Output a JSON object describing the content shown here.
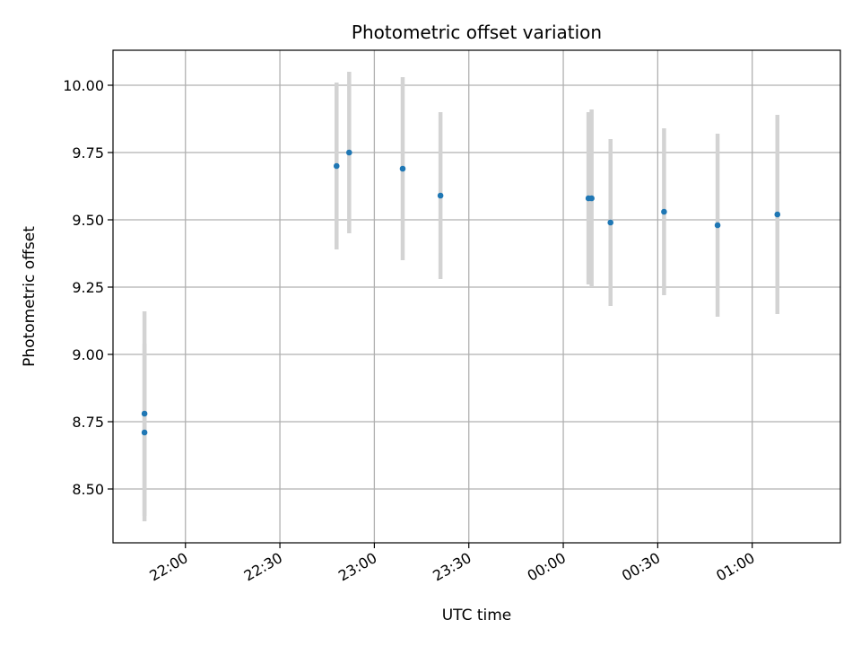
{
  "chart_data": {
    "type": "scatter",
    "title": "Photometric offset variation",
    "xlabel": "UTC time",
    "ylabel": "Photometric offset",
    "x_axis_kind": "time",
    "xlim": [
      "21:37",
      "01:28"
    ],
    "ylim": [
      8.3,
      10.13
    ],
    "grid": true,
    "x_ticks": [
      {
        "t": "22:00",
        "label": "22:00"
      },
      {
        "t": "22:30",
        "label": "22:30"
      },
      {
        "t": "23:00",
        "label": "23:00"
      },
      {
        "t": "23:30",
        "label": "23:30"
      },
      {
        "t": "00:00",
        "label": "00:00"
      },
      {
        "t": "00:30",
        "label": "00:30"
      },
      {
        "t": "01:00",
        "label": "01:00"
      }
    ],
    "y_ticks": [
      {
        "v": 8.5,
        "label": "8.50"
      },
      {
        "v": 8.75,
        "label": "8.75"
      },
      {
        "v": 9.0,
        "label": "9.00"
      },
      {
        "v": 9.25,
        "label": "9.25"
      },
      {
        "v": 9.5,
        "label": "9.50"
      },
      {
        "v": 9.75,
        "label": "9.75"
      },
      {
        "v": 10.0,
        "label": "10.00"
      }
    ],
    "colors": {
      "point": "#1f77b4",
      "errorbar": "#d3d3d3",
      "grid": "#b0b0b0"
    },
    "points": [
      {
        "x": "21:47",
        "y": 8.78,
        "yerr": 0.38
      },
      {
        "x": "21:47",
        "y": 8.71,
        "yerr": 0.33
      },
      {
        "x": "22:48",
        "y": 9.7,
        "yerr": 0.31
      },
      {
        "x": "22:52",
        "y": 9.75,
        "yerr": 0.3
      },
      {
        "x": "23:09",
        "y": 9.69,
        "yerr": 0.34
      },
      {
        "x": "23:21",
        "y": 9.59,
        "yerr": 0.31
      },
      {
        "x": "00:08",
        "y": 9.58,
        "yerr": 0.32
      },
      {
        "x": "00:09",
        "y": 9.58,
        "yerr": 0.33
      },
      {
        "x": "00:15",
        "y": 9.49,
        "yerr": 0.31
      },
      {
        "x": "00:32",
        "y": 9.53,
        "yerr": 0.31
      },
      {
        "x": "00:49",
        "y": 9.48,
        "yerr": 0.34
      },
      {
        "x": "01:08",
        "y": 9.52,
        "yerr": 0.37
      }
    ]
  }
}
